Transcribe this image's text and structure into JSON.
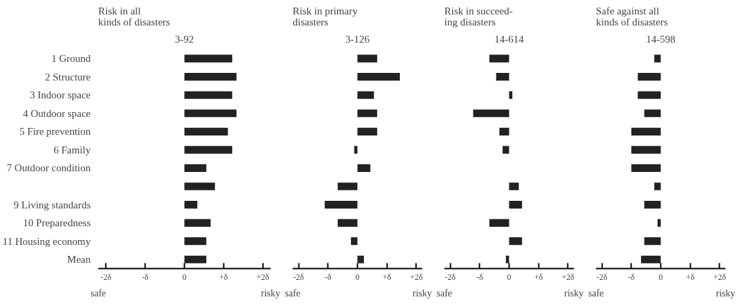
{
  "chart_data": [
    {
      "type": "bar",
      "orientation": "horizontal",
      "title": "Risk in all\nkinds of disasters",
      "subtitle": "3-92",
      "categories": [
        "1 Ground",
        "2 Structure",
        "3 Indoor space",
        "4 Outdoor space",
        "5 Fire prevention",
        "6 Family",
        "7 Outdoor condition",
        null,
        "9 Living standards",
        "10 Preparedness",
        "11 Housing economy",
        "Mean"
      ],
      "values": [
        1.22,
        1.33,
        1.22,
        1.33,
        1.11,
        1.22,
        0.56,
        0.78,
        0.33,
        0.67,
        0.56,
        0.56
      ],
      "color": "#222222",
      "xlim": [
        -2.2,
        2.2
      ],
      "xticks": [
        {
          "value": -2,
          "label": "-2δ"
        },
        {
          "value": -1,
          "label": "-δ"
        },
        0,
        {
          "value": 1,
          "label": "+δ"
        },
        {
          "value": 2,
          "label": "+2δ"
        }
      ],
      "annotations": [
        "safe",
        "risky"
      ]
    },
    {
      "type": "bar",
      "orientation": "horizontal",
      "title": "Risk in primary\ndisasters",
      "subtitle": "3-126",
      "values": [
        0.67,
        1.44,
        0.56,
        0.67,
        0.67,
        -0.11,
        0.44,
        -0.67,
        -1.11,
        -0.67,
        -0.22,
        0.22
      ],
      "color": "#222222",
      "xlim": [
        -2.2,
        2.2
      ],
      "xticks": [
        {
          "value": -2,
          "label": "-2δ"
        },
        {
          "value": -1,
          "label": "-δ"
        },
        0,
        {
          "value": 1,
          "label": "+δ"
        },
        {
          "value": 2,
          "label": "+2δ"
        }
      ],
      "annotations": [
        "safe",
        "risky"
      ],
      "tick_labels": "x"
    },
    {
      "type": "bar",
      "orientation": "horizontal",
      "title": "Risk in succeed-\ning disasters",
      "subtitle": "14-614",
      "values": [
        -0.67,
        -0.44,
        0.11,
        -1.22,
        -0.33,
        -0.22,
        0.0,
        0.33,
        0.44,
        -0.67,
        0.44,
        -0.11
      ],
      "color": "#222222",
      "xlim": [
        -2.2,
        2.2
      ],
      "xticks": [
        {
          "value": -2,
          "label": "-2δ"
        },
        {
          "value": -1,
          "label": "-δ"
        },
        0,
        {
          "value": 1,
          "label": "+δ"
        },
        {
          "value": 2,
          "label": "+2δ"
        }
      ],
      "annotations": [
        "safe",
        "risky"
      ],
      "tick_labels": "x"
    },
    {
      "type": "bar",
      "orientation": "horizontal",
      "title": "Safe against all\nkinds of disasters",
      "subtitle": "14-598",
      "values": [
        -0.22,
        -0.78,
        -0.78,
        -0.56,
        -1.0,
        -1.0,
        -1.0,
        -0.22,
        -0.56,
        -0.11,
        -0.56,
        -0.67
      ],
      "color": "#222222",
      "xlim": [
        -2.2,
        2.2
      ],
      "xticks": [
        {
          "value": -2,
          "label": "-2δ"
        },
        {
          "value": -1,
          "label": "-δ"
        },
        0,
        {
          "value": 1,
          "label": "+δ"
        },
        {
          "value": 2,
          "label": "+2δ"
        }
      ],
      "annotations": [
        "safe",
        "risky"
      ],
      "tick_labels": "x"
    }
  ]
}
